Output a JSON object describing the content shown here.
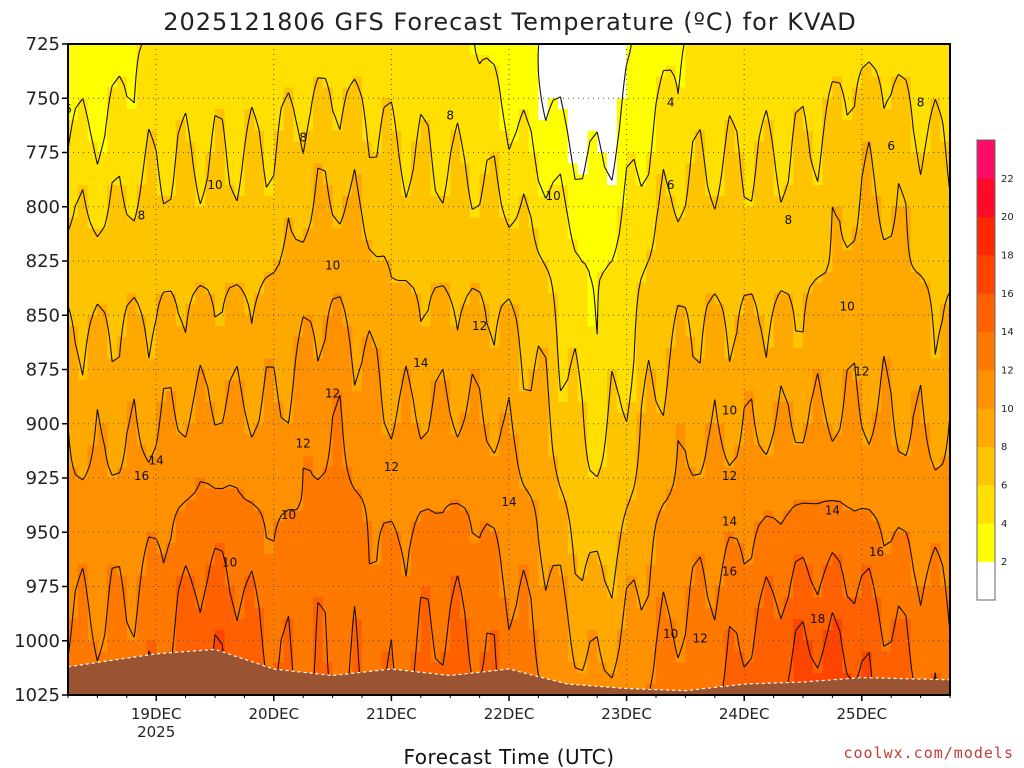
{
  "chart_data": {
    "type": "heatmap",
    "title": "2025121806 GFS Forecast Temperature (ºC) for KVAD",
    "xlabel": "Forecast Time (UTC)",
    "ylabel": "",
    "credit": "coolwx.com/models",
    "y_axis": {
      "quantity": "pressure (hPa)",
      "inverted": true,
      "range": [
        1025,
        725
      ],
      "ticks": [
        "725",
        "750",
        "775",
        "800",
        "825",
        "850",
        "875",
        "900",
        "925",
        "950",
        "975",
        "1000",
        "1025"
      ]
    },
    "x_axis": {
      "range": [
        "2025-12-18T06",
        "2025-12-25T18"
      ],
      "ticks": [
        {
          "time": "2025-12-19T00",
          "label": "19DEC",
          "sublabel": "2025"
        },
        {
          "time": "2025-12-20T00",
          "label": "20DEC",
          "sublabel": ""
        },
        {
          "time": "2025-12-21T00",
          "label": "21DEC",
          "sublabel": ""
        },
        {
          "time": "2025-12-22T00",
          "label": "22DEC",
          "sublabel": ""
        },
        {
          "time": "2025-12-23T00",
          "label": "23DEC",
          "sublabel": ""
        },
        {
          "time": "2025-12-24T00",
          "label": "24DEC",
          "sublabel": ""
        },
        {
          "time": "2025-12-25T00",
          "label": "25DEC",
          "sublabel": ""
        }
      ]
    },
    "grid": "dotted",
    "colorbar": {
      "position": "right",
      "levels": [
        0,
        2,
        4,
        6,
        8,
        10,
        12,
        14,
        16,
        18,
        20,
        22,
        24
      ],
      "tick_labels": [
        "2",
        "4",
        "6",
        "8",
        "10",
        "12",
        "14",
        "16",
        "18",
        "20",
        "22"
      ],
      "colors": [
        "#ffffff",
        "#ffff00",
        "#ffe000",
        "#ffc400",
        "#ffa800",
        "#ff9000",
        "#ff7800",
        "#ff6000",
        "#ff4400",
        "#ff2800",
        "#ff0a28",
        "#ff0c66"
      ]
    },
    "ground_color": "#9b5432",
    "ground_pressure_approx": [
      {
        "time": "2025-12-18T06",
        "p": 1012
      },
      {
        "time": "2025-12-19T00",
        "p": 1006
      },
      {
        "time": "2025-12-19T12",
        "p": 1004
      },
      {
        "time": "2025-12-20T00",
        "p": 1013
      },
      {
        "time": "2025-12-20T12",
        "p": 1016
      },
      {
        "time": "2025-12-21T00",
        "p": 1013
      },
      {
        "time": "2025-12-21T12",
        "p": 1016
      },
      {
        "time": "2025-12-22T00",
        "p": 1013
      },
      {
        "time": "2025-12-22T12",
        "p": 1020
      },
      {
        "time": "2025-12-23T00",
        "p": 1022
      },
      {
        "time": "2025-12-23T12",
        "p": 1023
      },
      {
        "time": "2025-12-24T00",
        "p": 1020
      },
      {
        "time": "2025-12-24T12",
        "p": 1019
      },
      {
        "time": "2025-12-25T00",
        "p": 1017
      },
      {
        "time": "2025-12-25T18",
        "p": 1018
      }
    ],
    "contour_labels": [
      {
        "time": "2025-12-18T06",
        "p": 755,
        "value": "6"
      },
      {
        "time": "2025-12-19T12",
        "p": 790,
        "value": "10"
      },
      {
        "time": "2025-12-18T21",
        "p": 804,
        "value": "8"
      },
      {
        "time": "2025-12-20T06",
        "p": 768,
        "value": "8"
      },
      {
        "time": "2025-12-21T12",
        "p": 758,
        "value": "8"
      },
      {
        "time": "2025-12-22T09",
        "p": 795,
        "value": "10"
      },
      {
        "time": "2025-12-23T09",
        "p": 752,
        "value": "4"
      },
      {
        "time": "2025-12-23T09",
        "p": 790,
        "value": "6"
      },
      {
        "time": "2025-12-24T09",
        "p": 806,
        "value": "8"
      },
      {
        "time": "2025-12-25T06",
        "p": 772,
        "value": "6"
      },
      {
        "time": "2025-12-25T12",
        "p": 752,
        "value": "8"
      },
      {
        "time": "2025-12-20T12",
        "p": 827,
        "value": "10"
      },
      {
        "time": "2025-12-21T18",
        "p": 855,
        "value": "12"
      },
      {
        "time": "2025-12-21T06",
        "p": 872,
        "value": "14"
      },
      {
        "time": "2025-12-20T12",
        "p": 886,
        "value": "12"
      },
      {
        "time": "2025-12-20T06",
        "p": 909,
        "value": "12"
      },
      {
        "time": "2025-12-20T03",
        "p": 942,
        "value": "10"
      },
      {
        "time": "2025-12-19T15",
        "p": 964,
        "value": "10"
      },
      {
        "time": "2025-12-18T24",
        "p": 917,
        "value": "14"
      },
      {
        "time": "2025-12-18T21",
        "p": 924,
        "value": "16"
      },
      {
        "time": "2025-12-20T24",
        "p": 920,
        "value": "12"
      },
      {
        "time": "2025-12-21T24",
        "p": 936,
        "value": "14"
      },
      {
        "time": "2025-12-24T21",
        "p": 846,
        "value": "10"
      },
      {
        "time": "2025-12-25T00",
        "p": 876,
        "value": "12"
      },
      {
        "time": "2025-12-23T21",
        "p": 894,
        "value": "10"
      },
      {
        "time": "2025-12-23T21",
        "p": 924,
        "value": "12"
      },
      {
        "time": "2025-12-23T21",
        "p": 945,
        "value": "14"
      },
      {
        "time": "2025-12-24T18",
        "p": 940,
        "value": "14"
      },
      {
        "time": "2025-12-25T03",
        "p": 959,
        "value": "16"
      },
      {
        "time": "2025-12-23T21",
        "p": 968,
        "value": "16"
      },
      {
        "time": "2025-12-24T15",
        "p": 990,
        "value": "18"
      },
      {
        "time": "2025-12-23T09",
        "p": 997,
        "value": "10"
      },
      {
        "time": "2025-12-23T15",
        "p": 999,
        "value": "12"
      }
    ]
  }
}
